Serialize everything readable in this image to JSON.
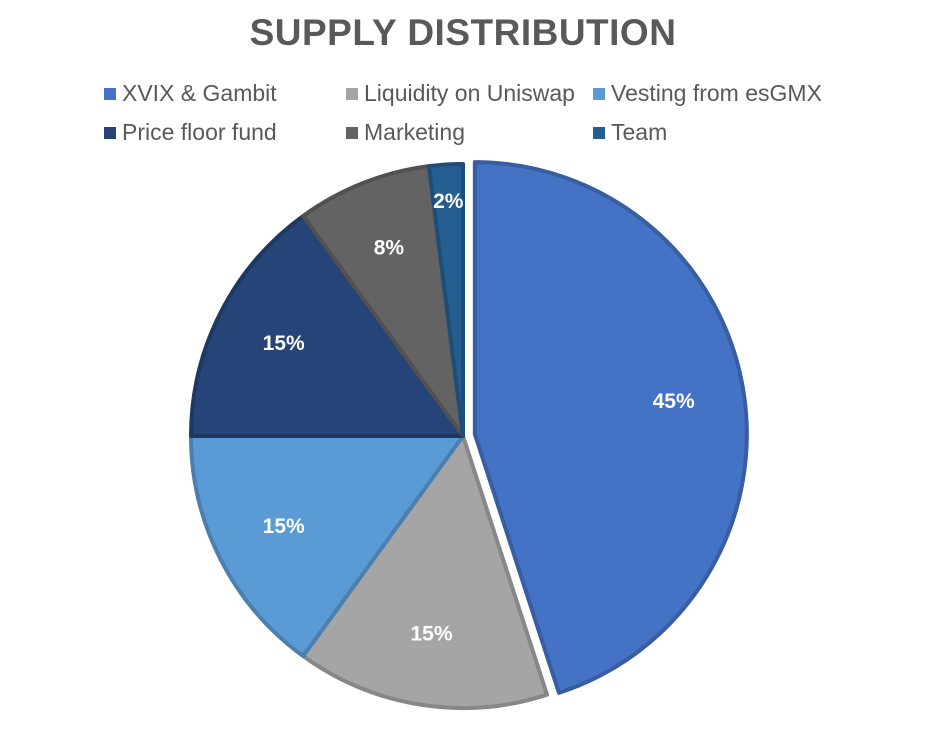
{
  "chart_data": {
    "type": "pie",
    "title": "SUPPLY DISTRIBUTION",
    "legend_position": "top",
    "categories": [
      "XVIX & Gambit",
      "Liquidity on Uniswap",
      "Vesting from esGMX",
      "Price floor fund",
      "Marketing",
      "Team"
    ],
    "values": [
      45,
      15,
      15,
      15,
      8,
      2
    ],
    "labels": [
      "45%",
      "15%",
      "15%",
      "15%",
      "8%",
      "2%"
    ],
    "colors": [
      "#4472C4",
      "#A5A5A5",
      "#5B9BD5",
      "#264478",
      "#636363",
      "#255E91"
    ],
    "exploded": [
      "XVIX & Gambit"
    ]
  }
}
